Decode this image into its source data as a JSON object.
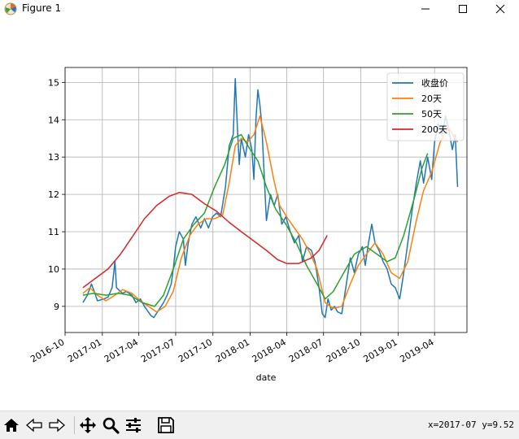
{
  "window": {
    "title": "Figure 1"
  },
  "toolbar": {
    "buttons": [
      {
        "name": "home-icon"
      },
      {
        "name": "back-icon"
      },
      {
        "name": "forward-icon"
      },
      {
        "name": "pan-icon"
      },
      {
        "name": "zoom-icon"
      },
      {
        "name": "configure-subplots-icon"
      },
      {
        "name": "save-icon"
      }
    ],
    "coords": "x=2017-07 y=9.52"
  },
  "chart_data": {
    "type": "line",
    "xlabel": "date",
    "ylabel": "",
    "ylim": [
      8.3,
      15.4
    ],
    "xlim": [
      "2016-10-01",
      "2019-06-20"
    ],
    "x_ticks": [
      "2016-10",
      "2017-01",
      "2017-04",
      "2017-07",
      "2017-10",
      "2018-01",
      "2018-04",
      "2018-07",
      "2018-10",
      "2019-01",
      "2019-04"
    ],
    "y_ticks": [
      9,
      10,
      11,
      12,
      13,
      14,
      15
    ],
    "grid": true,
    "legend_position": "upper right",
    "series": [
      {
        "name": "收盘价",
        "color": "#1f77b4",
        "points": [
          [
            "2016-11-14",
            9.1
          ],
          [
            "2016-11-25",
            9.3
          ],
          [
            "2016-12-05",
            9.6
          ],
          [
            "2016-12-12",
            9.4
          ],
          [
            "2016-12-20",
            9.15
          ],
          [
            "2017-01-05",
            9.2
          ],
          [
            "2017-01-15",
            9.25
          ],
          [
            "2017-01-25",
            9.5
          ],
          [
            "2017-02-01",
            10.2
          ],
          [
            "2017-02-05",
            9.5
          ],
          [
            "2017-02-20",
            9.35
          ],
          [
            "2017-03-01",
            9.4
          ],
          [
            "2017-03-15",
            9.3
          ],
          [
            "2017-03-25",
            9.1
          ],
          [
            "2017-04-05",
            9.2
          ],
          [
            "2017-04-15",
            9.0
          ],
          [
            "2017-05-01",
            8.75
          ],
          [
            "2017-05-08",
            8.7
          ],
          [
            "2017-05-20",
            8.9
          ],
          [
            "2017-06-01",
            9.1
          ],
          [
            "2017-06-10",
            9.3
          ],
          [
            "2017-06-20",
            9.6
          ],
          [
            "2017-06-25",
            10.0
          ],
          [
            "2017-07-01",
            10.6
          ],
          [
            "2017-07-10",
            11.0
          ],
          [
            "2017-07-20",
            10.8
          ],
          [
            "2017-07-25",
            10.1
          ],
          [
            "2017-08-01",
            10.7
          ],
          [
            "2017-08-10",
            11.2
          ],
          [
            "2017-08-20",
            11.4
          ],
          [
            "2017-09-01",
            11.1
          ],
          [
            "2017-09-10",
            11.35
          ],
          [
            "2017-09-20",
            11.1
          ],
          [
            "2017-09-30",
            11.4
          ],
          [
            "2017-10-10",
            11.5
          ],
          [
            "2017-10-20",
            11.4
          ],
          [
            "2017-11-01",
            12.2
          ],
          [
            "2017-11-10",
            13.3
          ],
          [
            "2017-11-20",
            13.6
          ],
          [
            "2017-11-25",
            15.1
          ],
          [
            "2017-11-30",
            13.9
          ],
          [
            "2017-12-05",
            12.8
          ],
          [
            "2017-12-10",
            13.5
          ],
          [
            "2017-12-20",
            13.0
          ],
          [
            "2017-12-28",
            13.6
          ],
          [
            "2018-01-05",
            13.2
          ],
          [
            "2018-01-10",
            12.4
          ],
          [
            "2018-01-15",
            14.0
          ],
          [
            "2018-01-20",
            14.8
          ],
          [
            "2018-01-25",
            14.4
          ],
          [
            "2018-01-30",
            13.8
          ],
          [
            "2018-02-05",
            12.4
          ],
          [
            "2018-02-10",
            11.3
          ],
          [
            "2018-02-20",
            12.0
          ],
          [
            "2018-03-01",
            11.7
          ],
          [
            "2018-03-10",
            12.0
          ],
          [
            "2018-03-20",
            11.2
          ],
          [
            "2018-03-30",
            11.4
          ],
          [
            "2018-04-10",
            11.0
          ],
          [
            "2018-04-20",
            10.7
          ],
          [
            "2018-05-01",
            10.9
          ],
          [
            "2018-05-10",
            10.2
          ],
          [
            "2018-05-20",
            10.6
          ],
          [
            "2018-06-01",
            10.5
          ],
          [
            "2018-06-10",
            10.2
          ],
          [
            "2018-06-20",
            9.5
          ],
          [
            "2018-06-28",
            8.8
          ],
          [
            "2018-07-05",
            8.7
          ],
          [
            "2018-07-12",
            9.2
          ],
          [
            "2018-07-20",
            8.9
          ],
          [
            "2018-07-28",
            9.0
          ],
          [
            "2018-08-05",
            8.85
          ],
          [
            "2018-08-15",
            8.8
          ],
          [
            "2018-08-25",
            9.5
          ],
          [
            "2018-09-05",
            10.3
          ],
          [
            "2018-09-15",
            9.9
          ],
          [
            "2018-09-25",
            10.4
          ],
          [
            "2018-10-05",
            10.6
          ],
          [
            "2018-10-12",
            10.1
          ],
          [
            "2018-10-20",
            10.7
          ],
          [
            "2018-10-28",
            11.2
          ],
          [
            "2018-11-05",
            10.7
          ],
          [
            "2018-11-15",
            10.5
          ],
          [
            "2018-11-25",
            10.2
          ],
          [
            "2018-12-05",
            10.0
          ],
          [
            "2018-12-15",
            9.6
          ],
          [
            "2018-12-25",
            9.5
          ],
          [
            "2019-01-05",
            9.2
          ],
          [
            "2019-01-15",
            9.9
          ],
          [
            "2019-01-25",
            10.7
          ],
          [
            "2019-02-05",
            11.6
          ],
          [
            "2019-02-15",
            12.3
          ],
          [
            "2019-02-25",
            12.9
          ],
          [
            "2019-03-05",
            12.3
          ],
          [
            "2019-03-15",
            13.0
          ],
          [
            "2019-03-25",
            12.4
          ],
          [
            "2019-04-01",
            13.4
          ],
          [
            "2019-04-10",
            13.9
          ],
          [
            "2019-04-20",
            13.6
          ],
          [
            "2019-04-28",
            14.1
          ],
          [
            "2019-05-05",
            13.8
          ],
          [
            "2019-05-15",
            13.2
          ],
          [
            "2019-05-22",
            13.6
          ],
          [
            "2019-05-28",
            12.2
          ]
        ]
      },
      {
        "name": "20天",
        "color": "#ff7f0e",
        "points": [
          [
            "2016-11-14",
            9.35
          ],
          [
            "2016-12-01",
            9.5
          ],
          [
            "2016-12-20",
            9.3
          ],
          [
            "2017-01-10",
            9.15
          ],
          [
            "2017-02-01",
            9.3
          ],
          [
            "2017-02-20",
            9.45
          ],
          [
            "2017-03-15",
            9.35
          ],
          [
            "2017-04-05",
            9.15
          ],
          [
            "2017-04-25",
            9.0
          ],
          [
            "2017-05-15",
            8.85
          ],
          [
            "2017-06-05",
            9.0
          ],
          [
            "2017-06-25",
            9.4
          ],
          [
            "2017-07-15",
            10.3
          ],
          [
            "2017-08-05",
            10.9
          ],
          [
            "2017-08-25",
            11.2
          ],
          [
            "2017-09-15",
            11.35
          ],
          [
            "2017-10-05",
            11.35
          ],
          [
            "2017-10-25",
            11.45
          ],
          [
            "2017-11-10",
            12.3
          ],
          [
            "2017-11-25",
            13.3
          ],
          [
            "2017-12-10",
            13.5
          ],
          [
            "2017-12-25",
            13.4
          ],
          [
            "2018-01-10",
            13.6
          ],
          [
            "2018-01-25",
            14.1
          ],
          [
            "2018-02-10",
            13.4
          ],
          [
            "2018-02-28",
            12.4
          ],
          [
            "2018-03-15",
            11.7
          ],
          [
            "2018-04-01",
            11.4
          ],
          [
            "2018-04-20",
            11.1
          ],
          [
            "2018-05-10",
            10.8
          ],
          [
            "2018-05-30",
            10.4
          ],
          [
            "2018-06-15",
            10.0
          ],
          [
            "2018-07-05",
            9.1
          ],
          [
            "2018-07-25",
            8.95
          ],
          [
            "2018-08-15",
            9.0
          ],
          [
            "2018-09-05",
            9.6
          ],
          [
            "2018-09-25",
            10.1
          ],
          [
            "2018-10-15",
            10.4
          ],
          [
            "2018-11-05",
            10.7
          ],
          [
            "2018-11-25",
            10.4
          ],
          [
            "2018-12-15",
            9.9
          ],
          [
            "2019-01-05",
            9.75
          ],
          [
            "2019-01-25",
            10.2
          ],
          [
            "2019-02-15",
            11.3
          ],
          [
            "2019-03-05",
            12.1
          ],
          [
            "2019-03-25",
            12.6
          ],
          [
            "2019-04-15",
            13.4
          ],
          [
            "2019-05-05",
            13.8
          ],
          [
            "2019-05-28",
            13.4
          ]
        ]
      },
      {
        "name": "50天",
        "color": "#2ca02c",
        "points": [
          [
            "2016-11-14",
            9.3
          ],
          [
            "2016-12-10",
            9.35
          ],
          [
            "2017-01-10",
            9.3
          ],
          [
            "2017-02-10",
            9.35
          ],
          [
            "2017-03-10",
            9.3
          ],
          [
            "2017-04-10",
            9.1
          ],
          [
            "2017-05-10",
            9.0
          ],
          [
            "2017-06-01",
            9.3
          ],
          [
            "2017-06-25",
            10.0
          ],
          [
            "2017-07-20",
            10.8
          ],
          [
            "2017-08-15",
            11.2
          ],
          [
            "2017-09-10",
            11.5
          ],
          [
            "2017-10-05",
            12.2
          ],
          [
            "2017-10-30",
            12.8
          ],
          [
            "2017-11-20",
            13.5
          ],
          [
            "2017-12-10",
            13.6
          ],
          [
            "2018-01-01",
            13.2
          ],
          [
            "2018-01-20",
            12.9
          ],
          [
            "2018-02-10",
            12.2
          ],
          [
            "2018-03-05",
            11.6
          ],
          [
            "2018-03-30",
            11.2
          ],
          [
            "2018-04-25",
            10.7
          ],
          [
            "2018-05-20",
            10.1
          ],
          [
            "2018-06-15",
            9.6
          ],
          [
            "2018-07-05",
            9.2
          ],
          [
            "2018-07-25",
            9.4
          ],
          [
            "2018-08-20",
            9.9
          ],
          [
            "2018-09-15",
            10.4
          ],
          [
            "2018-10-15",
            10.6
          ],
          [
            "2018-11-10",
            10.4
          ],
          [
            "2018-12-05",
            10.2
          ],
          [
            "2018-12-25",
            10.3
          ],
          [
            "2019-01-15",
            10.9
          ],
          [
            "2019-02-10",
            11.9
          ],
          [
            "2019-03-01",
            12.7
          ],
          [
            "2019-03-15",
            13.1
          ]
        ]
      },
      {
        "name": "200天",
        "color": "#d62728",
        "points": [
          [
            "2016-11-14",
            9.5
          ],
          [
            "2016-12-15",
            9.75
          ],
          [
            "2017-01-15",
            10.0
          ],
          [
            "2017-02-15",
            10.4
          ],
          [
            "2017-03-15",
            10.85
          ],
          [
            "2017-04-15",
            11.35
          ],
          [
            "2017-05-15",
            11.7
          ],
          [
            "2017-06-15",
            11.95
          ],
          [
            "2017-07-10",
            12.05
          ],
          [
            "2017-08-10",
            12.0
          ],
          [
            "2017-09-10",
            11.75
          ],
          [
            "2017-10-10",
            11.55
          ],
          [
            "2017-11-10",
            11.25
          ],
          [
            "2017-12-10",
            11.0
          ],
          [
            "2018-01-10",
            10.75
          ],
          [
            "2018-02-10",
            10.5
          ],
          [
            "2018-03-10",
            10.25
          ],
          [
            "2018-04-01",
            10.15
          ],
          [
            "2018-05-01",
            10.15
          ],
          [
            "2018-06-01",
            10.3
          ],
          [
            "2018-06-20",
            10.5
          ],
          [
            "2018-07-10",
            10.9
          ]
        ]
      }
    ]
  }
}
